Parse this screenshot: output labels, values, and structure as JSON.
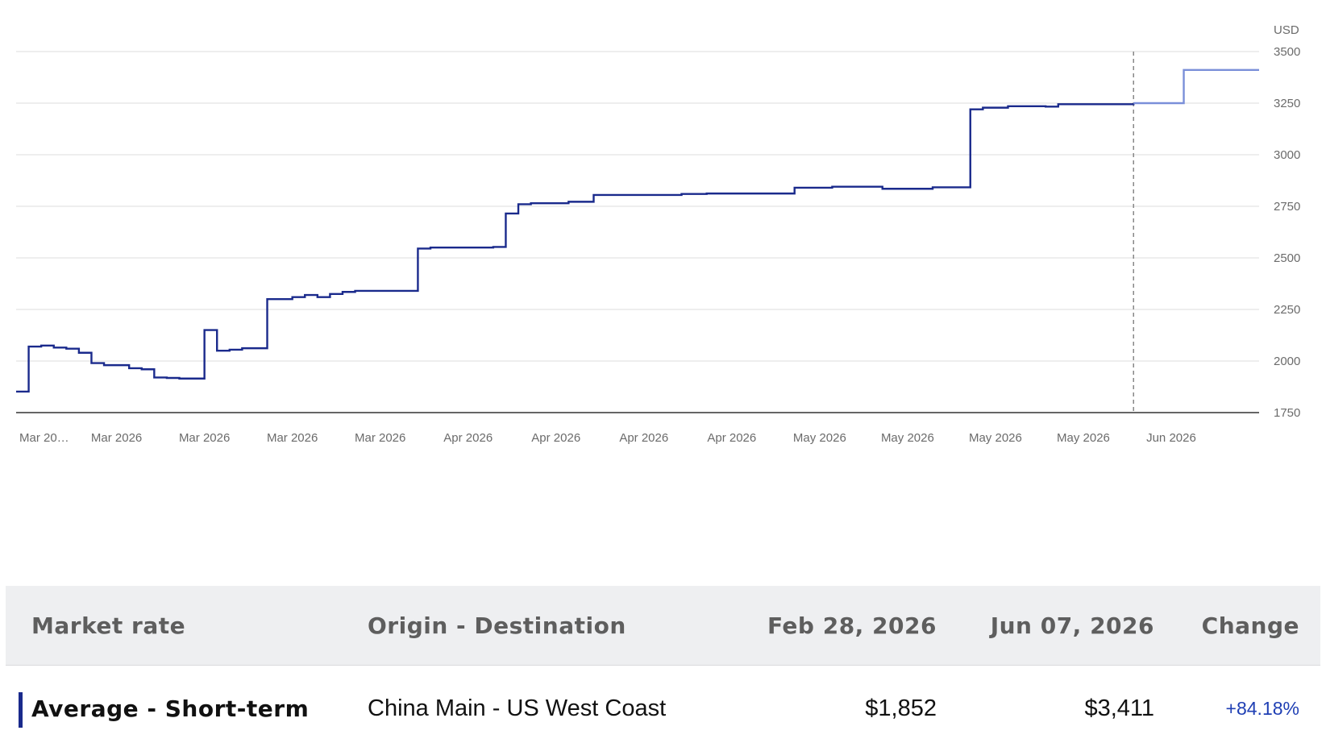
{
  "chart_data": {
    "type": "line",
    "step": true,
    "unit": "USD",
    "ylim": [
      1750,
      3500
    ],
    "yticks": [
      1750,
      2000,
      2250,
      2500,
      2750,
      3000,
      3250,
      3500
    ],
    "xlim": [
      "2026-02-28",
      "2026-06-07"
    ],
    "x_tick_labels": [
      {
        "date": "2026-02-28",
        "label": "Mar 20…"
      },
      {
        "date": "2026-03-08",
        "label": "Mar 2026"
      },
      {
        "date": "2026-03-15",
        "label": "Mar 2026"
      },
      {
        "date": "2026-03-22",
        "label": "Mar 2026"
      },
      {
        "date": "2026-03-29",
        "label": "Mar 2026"
      },
      {
        "date": "2026-04-05",
        "label": "Apr 2026"
      },
      {
        "date": "2026-04-12",
        "label": "Apr 2026"
      },
      {
        "date": "2026-04-19",
        "label": "Apr 2026"
      },
      {
        "date": "2026-04-26",
        "label": "Apr 2026"
      },
      {
        "date": "2026-05-03",
        "label": "May 2026"
      },
      {
        "date": "2026-05-10",
        "label": "May 2026"
      },
      {
        "date": "2026-05-17",
        "label": "May 2026"
      },
      {
        "date": "2026-05-24",
        "label": "May 2026"
      },
      {
        "date": "2026-05-31",
        "label": "Jun 2026"
      }
    ],
    "forecast_start": "2026-05-28",
    "colors": {
      "actual": "#1a2a8c",
      "forecast": "#7a8fd9",
      "grid": "#dddddd",
      "axis": "#333333"
    },
    "series": [
      {
        "points": [
          [
            "2026-02-28",
            1852
          ],
          [
            "2026-03-01",
            2070
          ],
          [
            "2026-03-02",
            2075
          ],
          [
            "2026-03-03",
            2065
          ],
          [
            "2026-03-04",
            2060
          ],
          [
            "2026-03-05",
            2040
          ],
          [
            "2026-03-06",
            1990
          ],
          [
            "2026-03-07",
            1980
          ],
          [
            "2026-03-09",
            1965
          ],
          [
            "2026-03-10",
            1960
          ],
          [
            "2026-03-11",
            1920
          ],
          [
            "2026-03-12",
            1918
          ],
          [
            "2026-03-13",
            1915
          ],
          [
            "2026-03-15",
            2150
          ],
          [
            "2026-03-16",
            2050
          ],
          [
            "2026-03-17",
            2055
          ],
          [
            "2026-03-18",
            2062
          ],
          [
            "2026-03-20",
            2300
          ],
          [
            "2026-03-22",
            2310
          ],
          [
            "2026-03-23",
            2320
          ],
          [
            "2026-03-24",
            2310
          ],
          [
            "2026-03-25",
            2325
          ],
          [
            "2026-03-26",
            2335
          ],
          [
            "2026-03-27",
            2340
          ],
          [
            "2026-04-01",
            2545
          ],
          [
            "2026-04-02",
            2550
          ],
          [
            "2026-04-07",
            2553
          ],
          [
            "2026-04-08",
            2715
          ],
          [
            "2026-04-09",
            2760
          ],
          [
            "2026-04-10",
            2765
          ],
          [
            "2026-04-13",
            2772
          ],
          [
            "2026-04-15",
            2805
          ],
          [
            "2026-04-22",
            2810
          ],
          [
            "2026-04-24",
            2812
          ],
          [
            "2026-05-01",
            2840
          ],
          [
            "2026-05-04",
            2845
          ],
          [
            "2026-05-08",
            2835
          ],
          [
            "2026-05-12",
            2842
          ],
          [
            "2026-05-15",
            3220
          ],
          [
            "2026-05-16",
            3228
          ],
          [
            "2026-05-18",
            3235
          ],
          [
            "2026-05-21",
            3233
          ],
          [
            "2026-05-22",
            3245
          ],
          [
            "2026-05-28",
            3250
          ]
        ]
      },
      {
        "forecast": true,
        "points": [
          [
            "2026-05-28",
            3250
          ],
          [
            "2026-06-01",
            3250
          ],
          [
            "2026-06-01",
            3411
          ],
          [
            "2026-06-07",
            3411
          ]
        ]
      }
    ]
  },
  "table": {
    "headers": {
      "market_rate": "Market rate",
      "origin_destination": "Origin - Destination",
      "date1": "Feb 28, 2026",
      "date2": "Jun 07, 2026",
      "change": "Change"
    },
    "rows": [
      {
        "market_rate": "Average - Short-term",
        "origin_destination": "China Main - US West Coast",
        "value1": "$1,852",
        "value2": "$3,411",
        "change": "+84.18%"
      }
    ]
  }
}
